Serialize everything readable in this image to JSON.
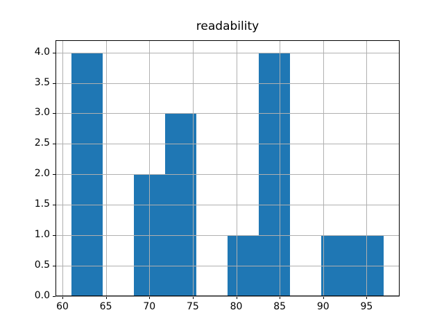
{
  "figure": {
    "background": "#ffffff"
  },
  "chart_data": {
    "type": "bar",
    "subtype": "histogram",
    "title": "readability",
    "xlabel": "",
    "ylabel": "",
    "bar_color": "#1f77b4",
    "grid_color": "#b0b0b0",
    "spine_color": "#000000",
    "grid": true,
    "grid_above_bars": true,
    "legend": null,
    "bin_edges": [
      61.0,
      64.6,
      68.2,
      71.8,
      75.4,
      79.0,
      82.6,
      86.2,
      89.8,
      93.4,
      97.0
    ],
    "counts": [
      4,
      0,
      2,
      3,
      0,
      1,
      4,
      0,
      1,
      1
    ],
    "xlim": [
      59.2,
      98.8
    ],
    "ylim": [
      0,
      4.2
    ],
    "x_ticks": [
      60,
      65,
      70,
      75,
      80,
      85,
      90,
      95
    ],
    "x_tick_labels": [
      "60",
      "65",
      "70",
      "75",
      "80",
      "85",
      "90",
      "95"
    ],
    "y_ticks": [
      0.0,
      0.5,
      1.0,
      1.5,
      2.0,
      2.5,
      3.0,
      3.5,
      4.0
    ],
    "y_tick_labels": [
      "0.0",
      "0.5",
      "1.0",
      "1.5",
      "2.0",
      "2.5",
      "3.0",
      "3.5",
      "4.0"
    ]
  }
}
